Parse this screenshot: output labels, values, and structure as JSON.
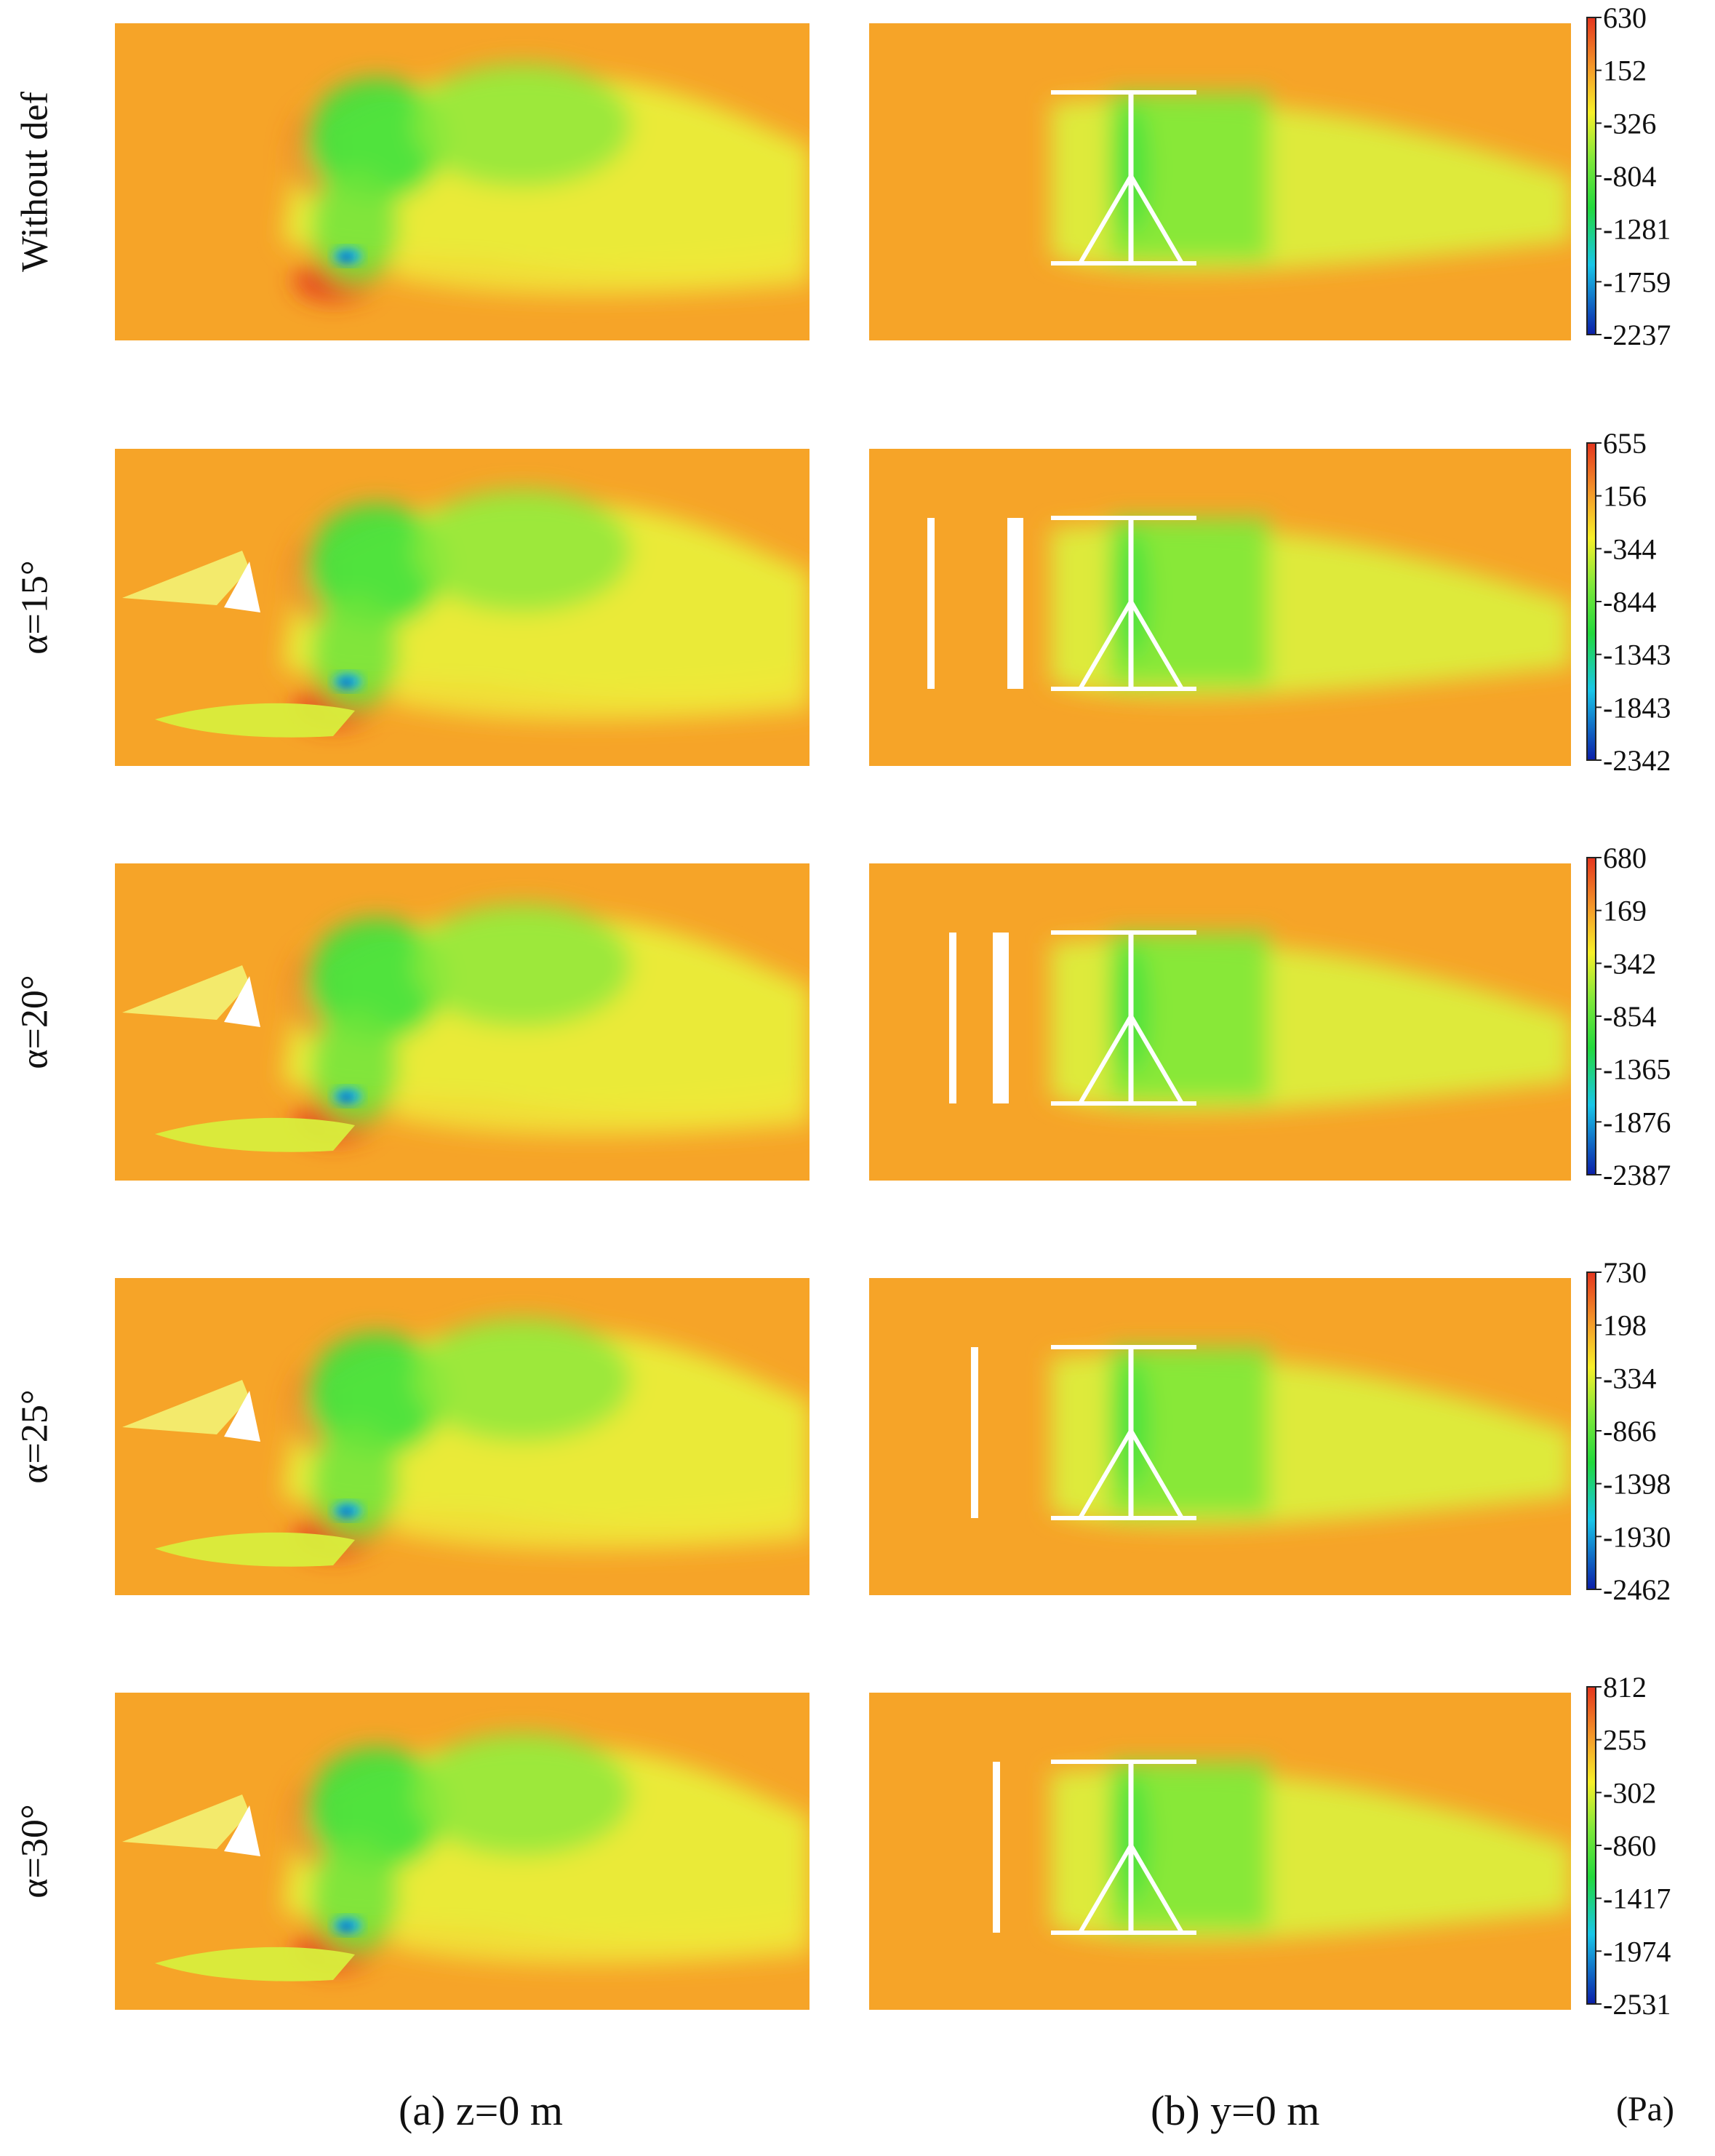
{
  "colors": {
    "background": "#f6a428",
    "colormap": [
      "#0b1ea8",
      "#19a7f0",
      "#22d93c",
      "#b9f032",
      "#f7f02a",
      "#f5a12a",
      "#e4351e"
    ]
  },
  "rows": [
    {
      "label": "Without def",
      "alpha": null,
      "colorbar": [
        "630",
        "152",
        "-326",
        "-804",
        "-1281",
        "-1759",
        "-2237"
      ]
    },
    {
      "label": "α=15°",
      "alpha": 15,
      "colorbar": [
        "655",
        "156",
        "-344",
        "-844",
        "-1343",
        "-1843",
        "-2342"
      ]
    },
    {
      "label": "α=20°",
      "alpha": 20,
      "colorbar": [
        "680",
        "169",
        "-342",
        "-854",
        "-1365",
        "-1876",
        "-2387"
      ]
    },
    {
      "label": "α=25°",
      "alpha": 25,
      "colorbar": [
        "730",
        "198",
        "-334",
        "-866",
        "-1398",
        "-1930",
        "-2462"
      ]
    },
    {
      "label": "α=30°",
      "alpha": 30,
      "colorbar": [
        "812",
        "255",
        "-302",
        "-860",
        "-1417",
        "-1974",
        "-2531"
      ]
    }
  ],
  "captions": {
    "left": "(a)  z=0 m",
    "right": "(b)  y=0 m",
    "unit": "(Pa)"
  }
}
